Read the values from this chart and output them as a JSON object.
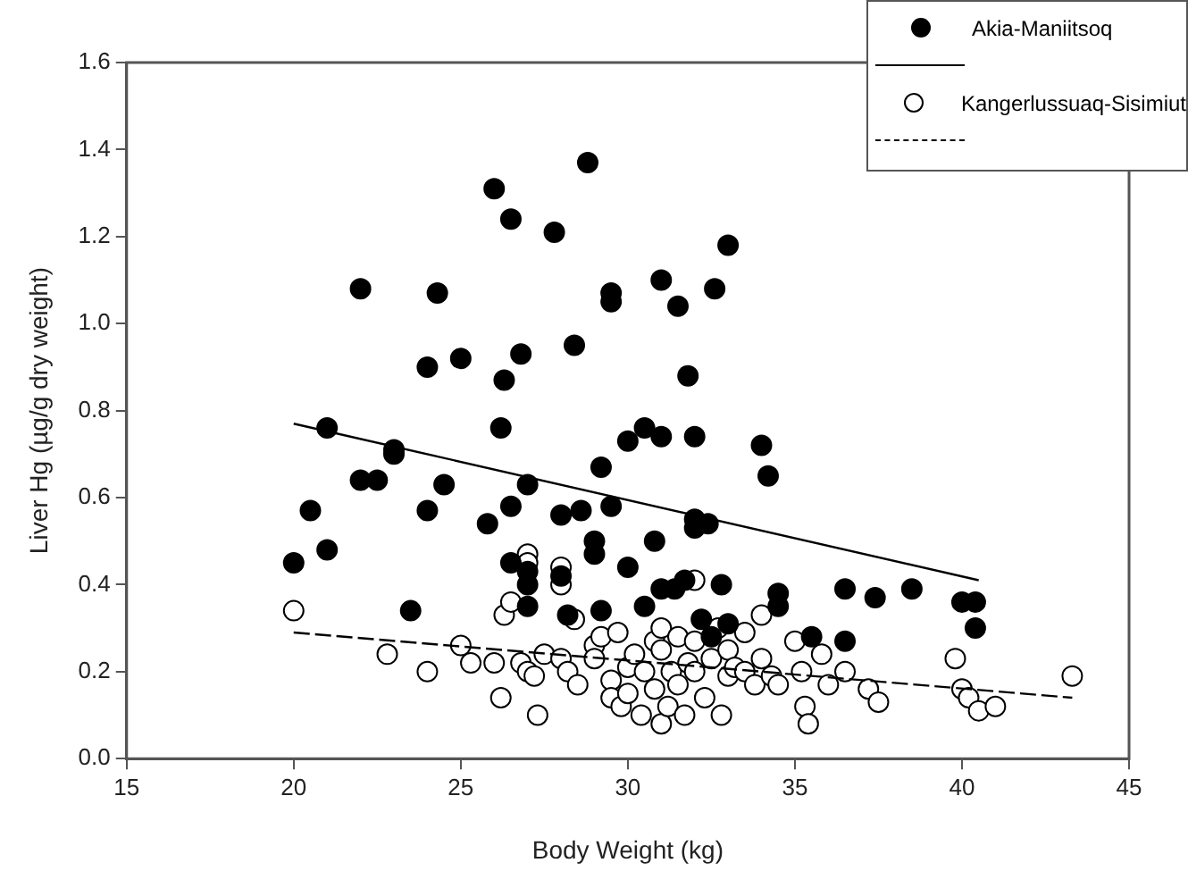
{
  "chart_data": {
    "type": "scatter",
    "xlabel": "Body Weight (kg)",
    "ylabel": "Liver Hg (µg/g dry weight)",
    "xlim": [
      15,
      45
    ],
    "xticks": [
      15,
      20,
      25,
      30,
      35,
      40,
      45
    ],
    "ylim": [
      0,
      1.6
    ],
    "yticks": [
      {
        "value": 0,
        "label": "0.0"
      },
      0.2,
      0.4,
      0.6,
      0.8,
      {
        "value": 1,
        "label": "1.0"
      },
      1.2,
      1.4,
      1.6
    ],
    "grid": false,
    "legend": "top right",
    "series": [
      {
        "name": "Akia-Maniitsoq",
        "type": "scatter",
        "color": "#000000",
        "marker": "circle",
        "x": [
          20,
          20.5,
          21,
          21,
          22,
          22,
          22.5,
          23,
          23,
          23.5,
          24,
          24,
          24.3,
          24.5,
          25,
          25.8,
          26,
          26.2,
          26.3,
          26.5,
          26.5,
          26.5,
          26.8,
          27,
          27,
          27,
          27,
          27.8,
          28,
          28,
          28.2,
          28.4,
          28.6,
          28.8,
          29,
          29,
          29.2,
          29.2,
          29.5,
          29.5,
          29.5,
          30,
          30,
          30.5,
          30.5,
          30.8,
          31,
          31,
          31,
          31.4,
          31.5,
          31.7,
          31.8,
          32,
          32,
          32,
          32.2,
          32.4,
          32.5,
          32.6,
          32.8,
          33,
          33,
          34,
          34.2,
          34.5,
          34.5,
          35.5,
          36.5,
          36.5,
          37.4,
          38.5,
          40,
          40.4,
          40.4
        ],
        "values": [
          0.45,
          0.57,
          0.76,
          0.48,
          1.08,
          0.64,
          0.64,
          0.71,
          0.7,
          0.34,
          0.9,
          0.57,
          1.07,
          0.63,
          0.92,
          0.54,
          1.31,
          0.76,
          0.87,
          1.24,
          0.58,
          0.45,
          0.93,
          0.63,
          0.4,
          0.35,
          0.43,
          1.21,
          0.56,
          0.42,
          0.33,
          0.95,
          0.57,
          1.37,
          0.47,
          0.5,
          0.34,
          0.67,
          1.07,
          1.05,
          0.58,
          0.44,
          0.73,
          0.35,
          0.76,
          0.5,
          0.74,
          0.39,
          1.1,
          0.39,
          1.04,
          0.41,
          0.88,
          0.74,
          0.55,
          0.53,
          0.32,
          0.54,
          0.28,
          1.08,
          0.4,
          1.18,
          0.31,
          0.72,
          0.65,
          0.38,
          0.35,
          0.28,
          0.39,
          0.27,
          0.37,
          0.39,
          0.36,
          0.36,
          0.3
        ]
      },
      {
        "type": "line",
        "color": "#000000",
        "line_style": "solid",
        "marker": "none",
        "x": [
          20,
          40.5
        ],
        "values": [
          0.77,
          0.41
        ]
      },
      {
        "name": "Kangerlussuaq-Sisimiut",
        "type": "scatter",
        "color": "#ffffff",
        "marker": "circle",
        "x": [
          20,
          22.8,
          24,
          25,
          25.3,
          26,
          26.2,
          26.3,
          26.5,
          26.8,
          27,
          27,
          27,
          27.2,
          27.3,
          27.5,
          28,
          28,
          28,
          28.2,
          28.4,
          28.5,
          29,
          29,
          29.2,
          29.5,
          29.5,
          29.7,
          29.8,
          30,
          30,
          30.2,
          30.4,
          30.5,
          30.8,
          30.8,
          31,
          31,
          31,
          31.2,
          31.3,
          31.5,
          31.5,
          31.7,
          31.8,
          32,
          32,
          32,
          32.3,
          32.5,
          32.7,
          32.8,
          33,
          33,
          33.2,
          33.5,
          33.5,
          33.8,
          34,
          34,
          34.3,
          34.5,
          35,
          35.2,
          35.3,
          35.4,
          35.8,
          36,
          36.5,
          37.2,
          37.5,
          39.8,
          40,
          40.2,
          40.5,
          41,
          43.3
        ],
        "values": [
          0.34,
          0.24,
          0.2,
          0.26,
          0.22,
          0.22,
          0.14,
          0.33,
          0.36,
          0.22,
          0.47,
          0.45,
          0.2,
          0.19,
          0.1,
          0.24,
          0.44,
          0.4,
          0.23,
          0.2,
          0.32,
          0.17,
          0.26,
          0.23,
          0.28,
          0.18,
          0.14,
          0.29,
          0.12,
          0.21,
          0.15,
          0.24,
          0.1,
          0.2,
          0.27,
          0.16,
          0.3,
          0.25,
          0.08,
          0.12,
          0.2,
          0.28,
          0.17,
          0.1,
          0.22,
          0.41,
          0.27,
          0.2,
          0.14,
          0.23,
          0.3,
          0.1,
          0.25,
          0.19,
          0.21,
          0.29,
          0.2,
          0.17,
          0.33,
          0.23,
          0.19,
          0.17,
          0.27,
          0.2,
          0.12,
          0.08,
          0.24,
          0.17,
          0.2,
          0.16,
          0.13,
          0.23,
          0.16,
          0.14,
          0.11,
          0.12,
          0.19
        ]
      },
      {
        "type": "line",
        "color": "#000000",
        "line_style": "dashed",
        "marker": "none",
        "x": [
          20,
          43.3
        ],
        "values": [
          0.29,
          0.14
        ]
      }
    ]
  }
}
